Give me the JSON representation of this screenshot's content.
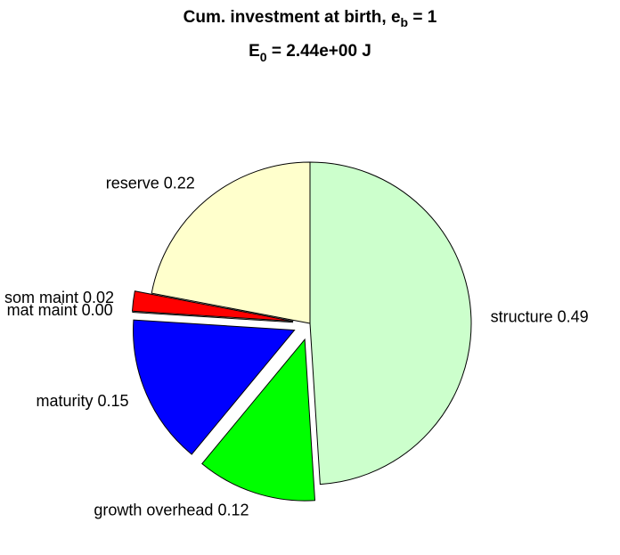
{
  "chart_data": {
    "type": "pie",
    "title": {
      "text": "Cum. investment at birth, e",
      "sub": "b",
      "rest": " = 1"
    },
    "subtitle": {
      "text": "E",
      "sub": "0",
      "rest": " = 2.44e+00 J"
    },
    "labels": [
      "structure 0.49",
      "growth overhead 0.12",
      "maturity 0.15",
      "mat maint 0.00",
      "som maint 0.02",
      "reserve 0.22"
    ],
    "values": [
      0.49,
      0.12,
      0.15,
      0.0,
      0.02,
      0.22
    ],
    "colors": [
      "#ccffcc",
      "#00ff00",
      "#0000ff",
      "#000000",
      "#ff0000",
      "#ffffcc"
    ],
    "explode": [
      0,
      1,
      1,
      1,
      1,
      0
    ]
  }
}
